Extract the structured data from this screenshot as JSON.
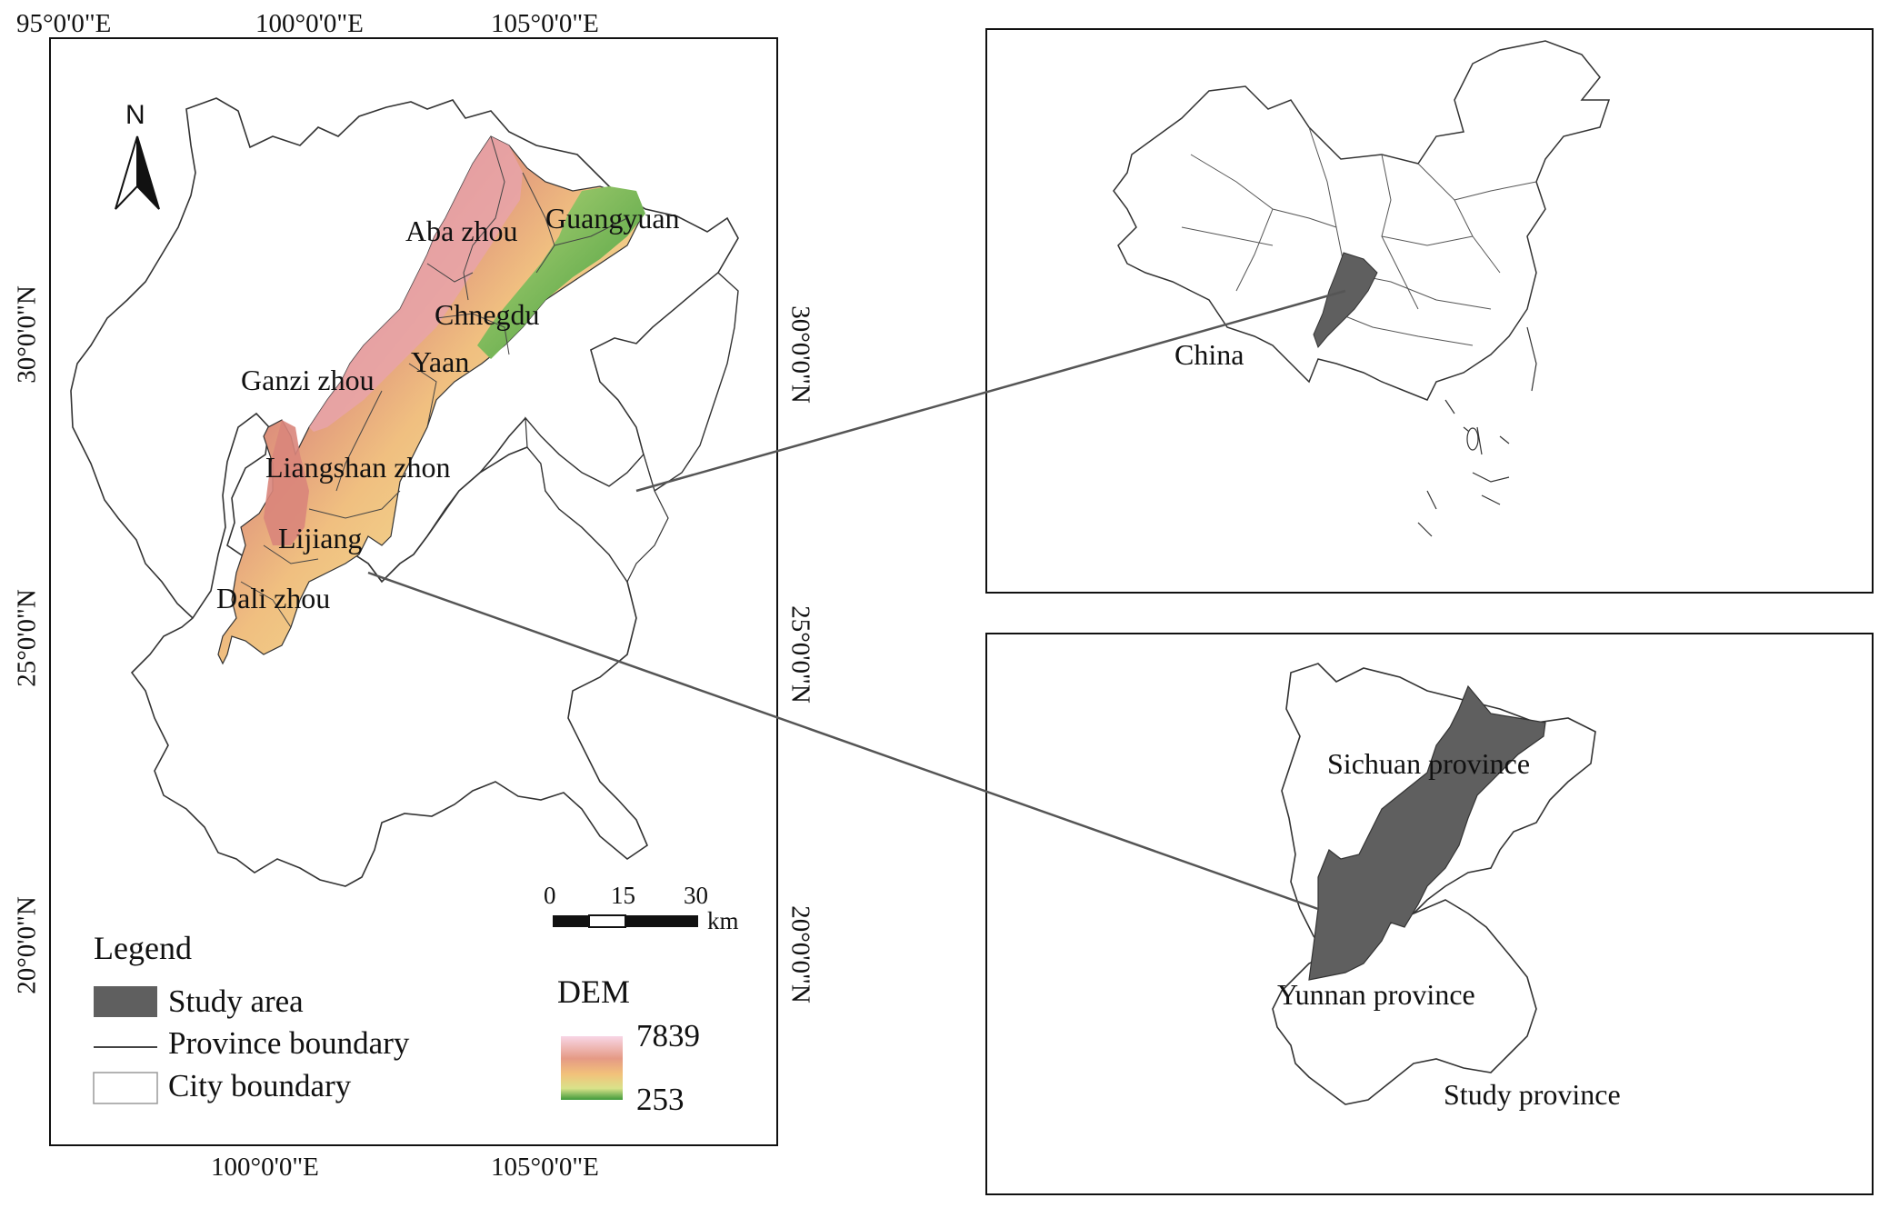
{
  "main_map": {
    "top_ticks": [
      "95°0'0\"E",
      "100°0'0\"E",
      "105°0'0\"E"
    ],
    "bottom_ticks": [
      "100°0'0\"E",
      "105°0'0\"E"
    ],
    "left_ticks": [
      "30°0'0\"N",
      "25°0'0\"N",
      "20°0'0\"N"
    ],
    "right_ticks": [
      "30°0'0\"N",
      "25°0'0\"N",
      "20°0'0\"N"
    ],
    "north_label": "N",
    "places": {
      "aba": "Aba zhou",
      "guangyuan": "Guangyuan",
      "chengdu": "Chnegdu",
      "yaan": "Yaan",
      "ganzi": "Ganzi zhou",
      "liangshan": "Liangshan zhon",
      "lijiang": "Lijiang",
      "dali": "Dali zhou"
    },
    "scale_bar": {
      "ticks": [
        "0",
        "15",
        "30"
      ],
      "unit": "km"
    }
  },
  "legend": {
    "title": "Legend",
    "items": [
      {
        "label": "Study area",
        "symbol": "filled-rect",
        "color": "#5f5f5f"
      },
      {
        "label": "Province boundary",
        "symbol": "line",
        "color": "#444444"
      },
      {
        "label": "City boundary",
        "symbol": "outline-rect",
        "color": "#9a9a9a"
      }
    ],
    "dem": {
      "title": "DEM",
      "max": "7839",
      "min": "253"
    }
  },
  "china_inset": {
    "label": "China"
  },
  "province_inset": {
    "sichuan": "Sichuan province",
    "yunnan": "Yunnan province",
    "caption": "Study province"
  },
  "colors": {
    "study_area": "#5f5f5f",
    "boundary": "#333333",
    "dem_high": "#f5c6d8",
    "dem_mid": "#e8a46a",
    "dem_low": "#3f9a3a",
    "leader_line": "#555555"
  }
}
